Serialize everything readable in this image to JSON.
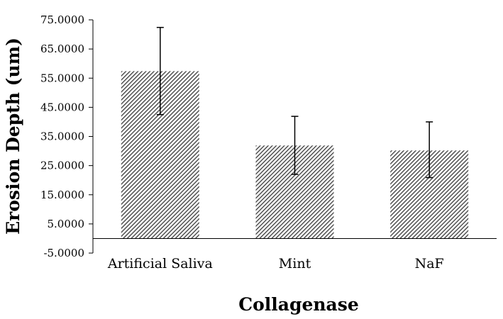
{
  "chart_data": {
    "type": "bar",
    "title": "",
    "xlabel": "Collagenase",
    "ylabel": "Erosion Depth (um)",
    "categories": [
      "Artificial Saliva",
      "Mint",
      "NaF"
    ],
    "values": [
      57.4,
      31.9,
      30.2
    ],
    "error_high": [
      72.4,
      41.9,
      40.0
    ],
    "error_low": [
      42.5,
      22.0,
      20.9
    ],
    "ylim": [
      -5,
      75
    ],
    "yticks": [
      75,
      65,
      55,
      45,
      35,
      25,
      15,
      5,
      -5
    ],
    "ytick_labels": [
      "75.0000",
      "65.0000",
      "55.0000",
      "45.0000",
      "35.0000",
      "25.0000",
      "15.0000",
      "5.0000",
      "-5.0000"
    ],
    "grid": false,
    "bar_fill": "diagonal-hatch",
    "bar_color": "#3a3a3a"
  }
}
